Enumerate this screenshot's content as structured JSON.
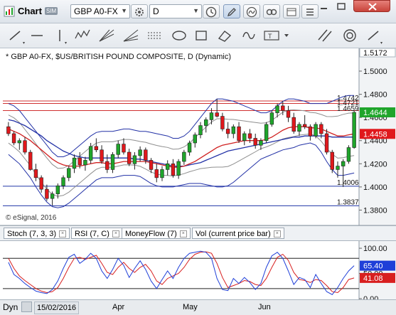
{
  "titlebar": {
    "title": "Chart",
    "sim_badge": "SIM",
    "symbol": "GBP A0-FX",
    "interval": "D"
  },
  "toolbar_icons": [
    "trendline-icon",
    "horizontal-line-icon",
    "vertical-line-icon",
    "elliott-icon",
    "gann-fan-icon",
    "fibonacci-icon",
    "fib-time-icon",
    "pitchfork-icon",
    "ellipse-icon",
    "rectangle-icon",
    "eraser-icon",
    "cycle-icon",
    "text-icon",
    "channel-icon",
    "target-icon",
    "arrow-icon"
  ],
  "chart": {
    "caption": "* GBP A0-FX, $US/BRITISH POUND COMPOSITE, D (Dynamic)",
    "watermark": "© eSignal, 2016",
    "y_ticks": [
      "1.5000",
      "1.4800",
      "1.4600",
      "1.4400",
      "1.4200",
      "1.4000",
      "1.3800"
    ],
    "top_price": "1.5172",
    "level_labels": [
      "1.4742",
      "1.4721",
      "1.4659",
      "1.4006",
      "1.3837"
    ],
    "last_price": "1.4644",
    "ma_price": "1.4458"
  },
  "chart_data": {
    "type": "candlestick",
    "ylim": [
      1.368,
      1.5172
    ],
    "levels": [
      1.4742,
      1.4721,
      1.4659,
      1.4006,
      1.3837
    ],
    "last_price": 1.4644,
    "ma_value": 1.4458,
    "x_labels": [
      "15/02/2016",
      "Apr",
      "May",
      "Jun"
    ],
    "candles": [
      [
        1.452,
        1.456,
        1.444,
        1.446
      ],
      [
        1.446,
        1.448,
        1.436,
        1.438
      ],
      [
        1.438,
        1.442,
        1.432,
        1.44
      ],
      [
        1.44,
        1.443,
        1.428,
        1.43
      ],
      [
        1.43,
        1.432,
        1.414,
        1.415
      ],
      [
        1.415,
        1.42,
        1.405,
        1.408
      ],
      [
        1.408,
        1.41,
        1.395,
        1.398
      ],
      [
        1.398,
        1.402,
        1.388,
        1.39
      ],
      [
        1.39,
        1.396,
        1.384,
        1.394
      ],
      [
        1.394,
        1.403,
        1.39,
        1.401
      ],
      [
        1.401,
        1.41,
        1.398,
        1.408
      ],
      [
        1.408,
        1.418,
        1.405,
        1.416
      ],
      [
        1.416,
        1.428,
        1.412,
        1.425
      ],
      [
        1.425,
        1.43,
        1.416,
        1.419
      ],
      [
        1.419,
        1.426,
        1.414,
        1.423
      ],
      [
        1.423,
        1.438,
        1.42,
        1.435
      ],
      [
        1.435,
        1.442,
        1.43,
        1.432
      ],
      [
        1.432,
        1.436,
        1.42,
        1.422
      ],
      [
        1.422,
        1.428,
        1.412,
        1.415
      ],
      [
        1.415,
        1.43,
        1.412,
        1.428
      ],
      [
        1.428,
        1.44,
        1.425,
        1.437
      ],
      [
        1.437,
        1.442,
        1.428,
        1.43
      ],
      [
        1.43,
        1.433,
        1.418,
        1.42
      ],
      [
        1.42,
        1.43,
        1.415,
        1.427
      ],
      [
        1.427,
        1.435,
        1.422,
        1.432
      ],
      [
        1.432,
        1.434,
        1.42,
        1.423
      ],
      [
        1.423,
        1.425,
        1.412,
        1.415
      ],
      [
        1.415,
        1.42,
        1.404,
        1.408
      ],
      [
        1.408,
        1.418,
        1.405,
        1.415
      ],
      [
        1.415,
        1.423,
        1.41,
        1.42
      ],
      [
        1.42,
        1.424,
        1.408,
        1.41
      ],
      [
        1.41,
        1.424,
        1.407,
        1.422
      ],
      [
        1.422,
        1.432,
        1.419,
        1.43
      ],
      [
        1.43,
        1.44,
        1.427,
        1.438
      ],
      [
        1.438,
        1.447,
        1.434,
        1.445
      ],
      [
        1.445,
        1.456,
        1.442,
        1.453
      ],
      [
        1.453,
        1.46,
        1.447,
        1.458
      ],
      [
        1.458,
        1.468,
        1.454,
        1.464
      ],
      [
        1.464,
        1.476,
        1.46,
        1.461
      ],
      [
        1.461,
        1.464,
        1.448,
        1.45
      ],
      [
        1.45,
        1.456,
        1.442,
        1.446
      ],
      [
        1.446,
        1.454,
        1.442,
        1.452
      ],
      [
        1.452,
        1.456,
        1.438,
        1.44
      ],
      [
        1.44,
        1.448,
        1.436,
        1.446
      ],
      [
        1.446,
        1.45,
        1.438,
        1.442
      ],
      [
        1.442,
        1.446,
        1.433,
        1.436
      ],
      [
        1.436,
        1.442,
        1.432,
        1.44
      ],
      [
        1.44,
        1.456,
        1.438,
        1.454
      ],
      [
        1.454,
        1.466,
        1.452,
        1.464
      ],
      [
        1.464,
        1.472,
        1.46,
        1.47
      ],
      [
        1.47,
        1.474,
        1.462,
        1.466
      ],
      [
        1.466,
        1.47,
        1.456,
        1.46
      ],
      [
        1.46,
        1.464,
        1.446,
        1.448
      ],
      [
        1.448,
        1.456,
        1.444,
        1.454
      ],
      [
        1.454,
        1.462,
        1.45,
        1.452
      ],
      [
        1.452,
        1.454,
        1.44,
        1.444
      ],
      [
        1.444,
        1.456,
        1.442,
        1.454
      ],
      [
        1.454,
        1.456,
        1.442,
        1.446
      ],
      [
        1.446,
        1.45,
        1.428,
        1.43
      ],
      [
        1.43,
        1.432,
        1.412,
        1.415
      ],
      [
        1.415,
        1.422,
        1.408,
        1.418
      ],
      [
        1.418,
        1.424,
        1.4,
        1.422
      ],
      [
        1.422,
        1.436,
        1.42,
        1.434
      ],
      [
        1.434,
        1.466,
        1.433,
        1.4644
      ]
    ],
    "bollinger_upper": [
      1.472,
      1.47,
      1.466,
      1.46,
      1.454,
      1.448,
      1.442,
      1.436,
      1.43,
      1.426,
      1.426,
      1.428,
      1.432,
      1.436,
      1.44,
      1.444,
      1.447,
      1.448,
      1.448,
      1.448,
      1.449,
      1.45,
      1.45,
      1.449,
      1.448,
      1.448,
      1.447,
      1.446,
      1.445,
      1.444,
      1.442,
      1.442,
      1.444,
      1.448,
      1.454,
      1.46,
      1.466,
      1.472,
      1.476,
      1.476,
      1.475,
      1.474,
      1.472,
      1.47,
      1.468,
      1.466,
      1.464,
      1.464,
      1.466,
      1.47,
      1.474,
      1.476,
      1.476,
      1.475,
      1.474,
      1.472,
      1.472,
      1.472,
      1.472,
      1.474,
      1.476,
      1.478,
      1.479,
      1.479
    ],
    "bollinger_lower": [
      1.428,
      1.424,
      1.42,
      1.414,
      1.408,
      1.4,
      1.393,
      1.387,
      1.383,
      1.382,
      1.383,
      1.386,
      1.39,
      1.394,
      1.398,
      1.402,
      1.406,
      1.408,
      1.408,
      1.408,
      1.409,
      1.41,
      1.41,
      1.41,
      1.409,
      1.406,
      1.403,
      1.401,
      1.4,
      1.4,
      1.4,
      1.401,
      1.402,
      1.403,
      1.403,
      1.403,
      1.402,
      1.401,
      1.4,
      1.4,
      1.401,
      1.404,
      1.408,
      1.412,
      1.416,
      1.42,
      1.424,
      1.426,
      1.428,
      1.43,
      1.432,
      1.433,
      1.434,
      1.436,
      1.437,
      1.438,
      1.436,
      1.43,
      1.422,
      1.415,
      1.41,
      1.41,
      1.411,
      1.412
    ],
    "ma_red": [
      1.45,
      1.448,
      1.446,
      1.443,
      1.44,
      1.436,
      1.432,
      1.428,
      1.424,
      1.421,
      1.419,
      1.418,
      1.418,
      1.418,
      1.419,
      1.42,
      1.421,
      1.421,
      1.42,
      1.42,
      1.421,
      1.422,
      1.422,
      1.422,
      1.422,
      1.422,
      1.421,
      1.42,
      1.419,
      1.418,
      1.417,
      1.417,
      1.418,
      1.42,
      1.422,
      1.425,
      1.428,
      1.431,
      1.434,
      1.436,
      1.437,
      1.438,
      1.439,
      1.44,
      1.44,
      1.44,
      1.44,
      1.441,
      1.443,
      1.446,
      1.449,
      1.451,
      1.452,
      1.452,
      1.452,
      1.451,
      1.451,
      1.45,
      1.448,
      1.446,
      1.444,
      1.444,
      1.445,
      1.4458
    ],
    "ma_blue": [
      1.458,
      1.457,
      1.455,
      1.453,
      1.45,
      1.447,
      1.444,
      1.44,
      1.437,
      1.434,
      1.431,
      1.429,
      1.427,
      1.426,
      1.425,
      1.425,
      1.425,
      1.425,
      1.425,
      1.425,
      1.425,
      1.425,
      1.425,
      1.424,
      1.424,
      1.423,
      1.422,
      1.421,
      1.42,
      1.419,
      1.418,
      1.418,
      1.418,
      1.419,
      1.42,
      1.421,
      1.423,
      1.425,
      1.427,
      1.429,
      1.431,
      1.432,
      1.433,
      1.434,
      1.435,
      1.436,
      1.437,
      1.438,
      1.439,
      1.44,
      1.441,
      1.442,
      1.443,
      1.443,
      1.444,
      1.444,
      1.444,
      1.444,
      1.444,
      1.443,
      1.443,
      1.443,
      1.443,
      1.443
    ],
    "stochastic": {
      "ylim": [
        0,
        110
      ],
      "overbought": 80,
      "oversold": 20,
      "k": [
        72,
        48,
        40,
        30,
        22,
        15,
        12,
        10,
        18,
        35,
        60,
        82,
        88,
        70,
        78,
        90,
        80,
        55,
        40,
        58,
        80,
        66,
        42,
        60,
        75,
        58,
        35,
        20,
        38,
        55,
        40,
        62,
        80,
        90,
        92,
        94,
        92,
        80,
        40,
        18,
        16,
        40,
        30,
        42,
        32,
        18,
        30,
        62,
        85,
        92,
        80,
        55,
        28,
        42,
        38,
        22,
        48,
        30,
        14,
        8,
        22,
        40,
        55,
        65.4
      ],
      "d": [
        80,
        60,
        45,
        36,
        28,
        20,
        15,
        12,
        14,
        22,
        40,
        62,
        80,
        82,
        78,
        82,
        86,
        70,
        52,
        48,
        62,
        72,
        60,
        52,
        62,
        68,
        55,
        35,
        28,
        40,
        45,
        50,
        62,
        78,
        88,
        92,
        93,
        90,
        70,
        42,
        22,
        26,
        30,
        36,
        34,
        28,
        26,
        40,
        62,
        82,
        88,
        76,
        52,
        38,
        36,
        32,
        38,
        36,
        26,
        14,
        12,
        22,
        38,
        41.08
      ]
    }
  },
  "stoch_panel": {
    "y_ticks": [
      "100.00",
      "50.00",
      "0.00"
    ],
    "k_label": "65.40",
    "d_label": "41.08"
  },
  "tabs": [
    {
      "label": "Stoch (7, 3, 3)"
    },
    {
      "label": "RSI (7, C)"
    },
    {
      "label": "MoneyFlow (7)"
    },
    {
      "label": "Vol (current price bar)"
    }
  ],
  "footer": {
    "dyn_label": "Dyn",
    "date": "15/02/2016",
    "months": [
      "Apr",
      "May",
      "Jun"
    ]
  },
  "colors": {
    "accent": "#2d4fb3",
    "up": "#1fa52b",
    "down": "#e0181c",
    "last_price_bg": "#1fa52b",
    "ma_bg": "#e0181c",
    "stoch_k": "#1f3fd8",
    "stoch_d": "#d81f1f"
  }
}
